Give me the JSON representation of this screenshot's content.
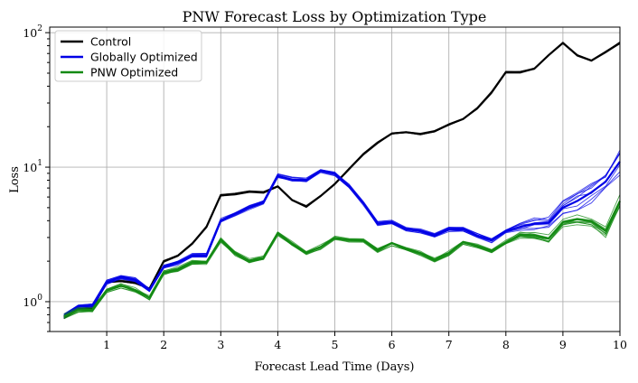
{
  "chart_data": {
    "type": "line",
    "title": "PNW Forecast Loss by Optimization Type",
    "xlabel": "Forecast Lead Time (Days)",
    "ylabel": "Loss",
    "xlim": [
      0.0,
      10.0
    ],
    "ylim": [
      0.6,
      110
    ],
    "yscale": "log",
    "grid": true,
    "legend_position": "top-left",
    "x_ticks": [
      1,
      2,
      3,
      4,
      5,
      6,
      7,
      8,
      9,
      10
    ],
    "x_tick_labels": [
      "1",
      "2",
      "3",
      "4",
      "5",
      "6",
      "7",
      "8",
      "9",
      "10"
    ],
    "y_ticks": [
      1,
      10,
      100
    ],
    "y_tick_labels": [
      {
        "base": "10",
        "exp": "0"
      },
      {
        "base": "10",
        "exp": "1"
      },
      {
        "base": "10",
        "exp": "2"
      }
    ],
    "x": [
      0.25,
      0.5,
      0.75,
      1.0,
      1.25,
      1.5,
      1.75,
      2.0,
      2.25,
      2.5,
      2.75,
      3.0,
      3.25,
      3.5,
      3.75,
      4.0,
      4.25,
      4.5,
      4.75,
      5.0,
      5.25,
      5.5,
      5.75,
      6.0,
      6.25,
      6.5,
      6.75,
      7.0,
      7.25,
      7.5,
      7.75,
      8.0,
      8.25,
      8.5,
      8.75,
      9.0,
      9.25,
      9.5,
      9.75,
      10.0
    ],
    "series": [
      {
        "name": "Control",
        "color": "#000000",
        "values": [
          0.76,
          0.88,
          0.9,
          1.4,
          1.42,
          1.38,
          1.25,
          2.0,
          2.2,
          2.7,
          3.6,
          6.2,
          6.3,
          6.6,
          6.5,
          7.2,
          5.7,
          5.1,
          6.1,
          7.5,
          9.7,
          12.5,
          15.2,
          17.8,
          18.2,
          17.6,
          18.5,
          20.8,
          22.8,
          27.5,
          36.0,
          51.0,
          51.0,
          54.0,
          68.0,
          84.0,
          68.0,
          62.0,
          72.0,
          84.0
        ],
        "spread": 0.025
      },
      {
        "name": "Globally Optimized",
        "color": "#0000e6",
        "values": [
          0.78,
          0.92,
          0.93,
          1.4,
          1.52,
          1.45,
          1.22,
          1.82,
          1.95,
          2.2,
          2.2,
          4.0,
          4.5,
          5.0,
          5.5,
          8.6,
          8.1,
          8.0,
          9.4,
          8.9,
          7.2,
          5.4,
          3.8,
          3.9,
          3.45,
          3.35,
          3.1,
          3.45,
          3.45,
          3.1,
          2.85,
          3.35,
          3.6,
          3.8,
          3.85,
          5.0,
          5.6,
          6.5,
          7.8,
          11.0
        ],
        "spread": 0.03,
        "tail_spread": 0.16
      },
      {
        "name": "PNW Optimized",
        "color": "#138a13",
        "values": [
          0.78,
          0.87,
          0.87,
          1.22,
          1.32,
          1.22,
          1.07,
          1.65,
          1.75,
          1.97,
          1.97,
          2.9,
          2.3,
          2.02,
          2.12,
          3.25,
          2.7,
          2.32,
          2.55,
          2.98,
          2.88,
          2.86,
          2.42,
          2.73,
          2.48,
          2.3,
          2.05,
          2.3,
          2.78,
          2.6,
          2.4,
          2.75,
          3.15,
          3.12,
          2.95,
          3.9,
          4.1,
          3.95,
          3.35,
          5.6
        ],
        "spread": 0.035,
        "tail_spread": 0.06
      }
    ]
  }
}
